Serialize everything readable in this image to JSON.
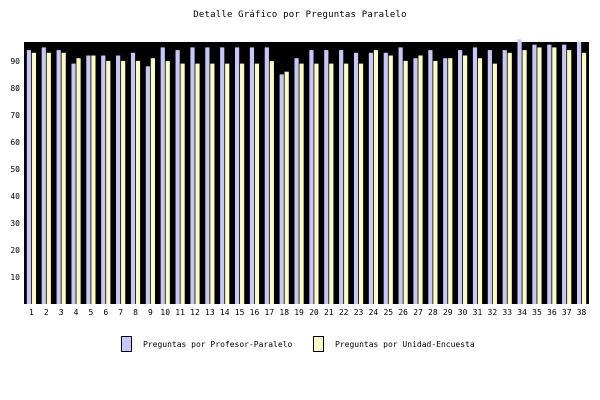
{
  "chart_data": {
    "type": "bar",
    "title": "Detalle Gráfico por Preguntas Paralelo",
    "xlabel": "",
    "ylabel": "",
    "ylim": [
      0,
      97
    ],
    "yticks": [
      10,
      20,
      30,
      40,
      50,
      60,
      70,
      80,
      90
    ],
    "grid": false,
    "legend_position": "bottom",
    "categories": [
      "1",
      "2",
      "3",
      "4",
      "5",
      "6",
      "7",
      "8",
      "9",
      "10",
      "11",
      "12",
      "13",
      "14",
      "15",
      "16",
      "17",
      "18",
      "19",
      "20",
      "21",
      "22",
      "23",
      "24",
      "25",
      "26",
      "27",
      "28",
      "29",
      "30",
      "31",
      "32",
      "33",
      "34",
      "35",
      "36",
      "37",
      "38"
    ],
    "series": [
      {
        "name": "Preguntas por Profesor-Paralelo",
        "color": "#c8c8f8",
        "values": [
          94,
          95,
          94,
          89,
          92,
          92,
          92,
          93,
          88,
          95,
          94,
          95,
          95,
          95,
          95,
          95,
          95,
          85,
          91,
          94,
          94,
          94,
          93,
          93,
          93,
          95,
          91,
          94,
          91,
          94,
          95,
          94,
          94,
          98,
          96,
          96,
          96,
          97
        ]
      },
      {
        "name": "Preguntas por Unidad-Encuesta",
        "color": "#fbfbc4",
        "values": [
          93,
          93,
          93,
          91,
          92,
          90,
          90,
          90,
          91,
          90,
          89,
          89,
          89,
          89,
          89,
          89,
          90,
          86,
          89,
          89,
          89,
          89,
          89,
          94,
          92,
          90,
          92,
          90,
          91,
          92,
          91,
          89,
          93,
          94,
          95,
          95,
          94,
          93
        ]
      }
    ]
  }
}
